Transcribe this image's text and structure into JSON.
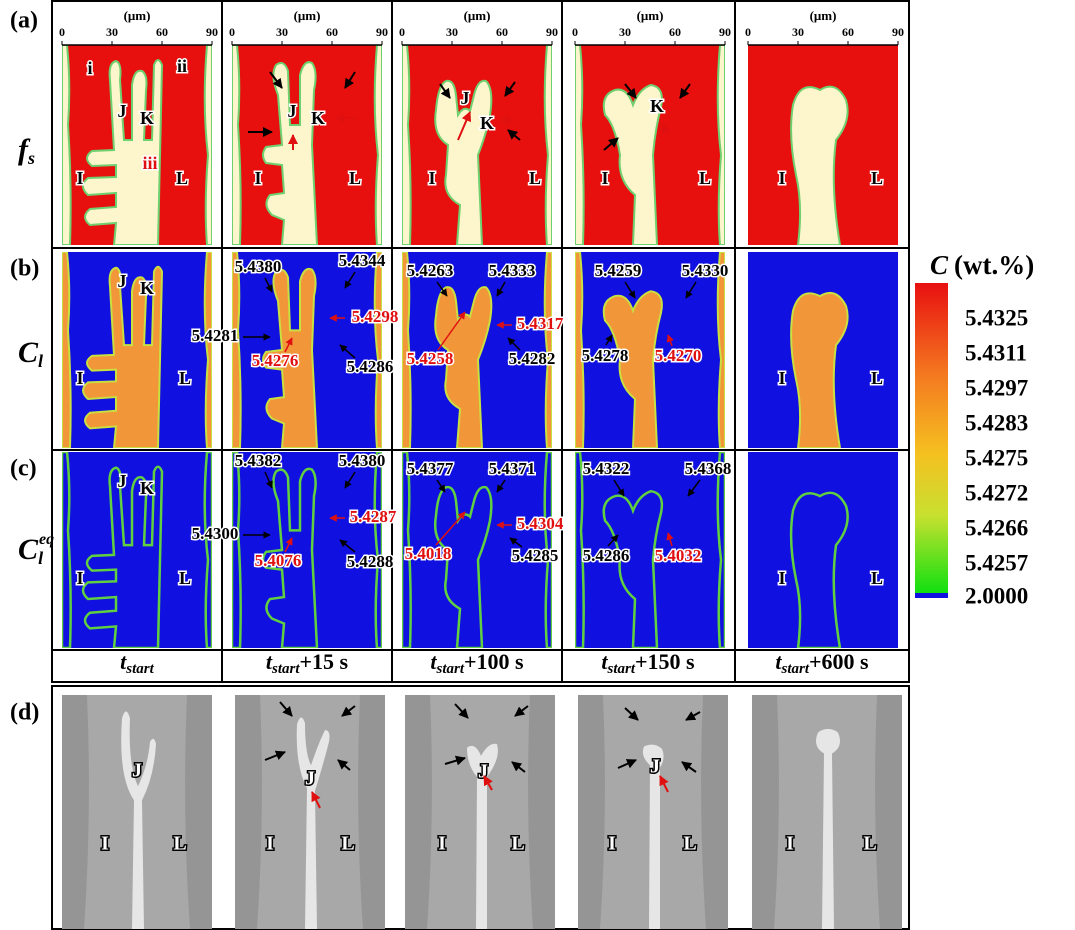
{
  "panel_labels": [
    "(a)",
    "(b)",
    "(c)",
    "(d)"
  ],
  "axis": {
    "unit": "(μm)",
    "ticks": [
      "0",
      "30",
      "60",
      "90"
    ]
  },
  "row_labels": {
    "fs": {
      "base": "f",
      "sub": "s"
    },
    "cl": {
      "base": "C",
      "sub": "l"
    },
    "cleq": {
      "base": "C",
      "sub": "l",
      "sup": "eq"
    }
  },
  "time_labels": [
    {
      "t": "t",
      "sub": "start"
    },
    {
      "t": "t",
      "sub": "start",
      "suffix": "+15 s"
    },
    {
      "t": "t",
      "sub": "start",
      "suffix": "+100 s"
    },
    {
      "t": "t",
      "sub": "start",
      "suffix": "+150 s"
    },
    {
      "t": "t",
      "sub": "start",
      "suffix": "+600 s"
    }
  ],
  "colorbar": {
    "symbol": "C",
    "unit": "(wt.%)",
    "labels": [
      "5.4325",
      "5.4311",
      "5.4297",
      "5.4283",
      "5.4275",
      "5.4272",
      "5.4266",
      "5.4257",
      "2.0000"
    ]
  },
  "regions": [
    "I",
    "L",
    "J",
    "K",
    "i",
    "ii",
    "iii"
  ],
  "annotations": {
    "b": [
      [
        {
          "text": "5.4380",
          "color": "black"
        },
        {
          "text": "5.4344",
          "color": "black"
        },
        {
          "text": "5.4281",
          "color": "black"
        },
        {
          "text": "5.4298",
          "color": "red"
        },
        {
          "text": "5.4276",
          "color": "red"
        },
        {
          "text": "5.4286",
          "color": "black"
        }
      ],
      [
        {
          "text": "5.4263",
          "color": "black"
        },
        {
          "text": "5.4333",
          "color": "black"
        },
        {
          "text": "5.4317",
          "color": "red"
        },
        {
          "text": "5.4258",
          "color": "red"
        },
        {
          "text": "5.4282",
          "color": "black"
        }
      ],
      [
        {
          "text": "5.4259",
          "color": "black"
        },
        {
          "text": "5.4330",
          "color": "black"
        },
        {
          "text": "5.4278",
          "color": "black"
        },
        {
          "text": "5.4270",
          "color": "red"
        }
      ]
    ],
    "c": [
      [
        {
          "text": "5.4382",
          "color": "black"
        },
        {
          "text": "5.4380",
          "color": "black"
        },
        {
          "text": "5.4300",
          "color": "black"
        },
        {
          "text": "5.4287",
          "color": "red"
        },
        {
          "text": "5.4076",
          "color": "red"
        },
        {
          "text": "5.4288",
          "color": "black"
        }
      ],
      [
        {
          "text": "5.4377",
          "color": "black"
        },
        {
          "text": "5.4371",
          "color": "black"
        },
        {
          "text": "5.4304",
          "color": "red"
        },
        {
          "text": "5.4018",
          "color": "red"
        },
        {
          "text": "5.4285",
          "color": "black"
        }
      ],
      [
        {
          "text": "5.4322",
          "color": "black"
        },
        {
          "text": "5.4368",
          "color": "black"
        },
        {
          "text": "5.4286",
          "color": "black"
        },
        {
          "text": "5.4032",
          "color": "red"
        }
      ]
    ]
  }
}
